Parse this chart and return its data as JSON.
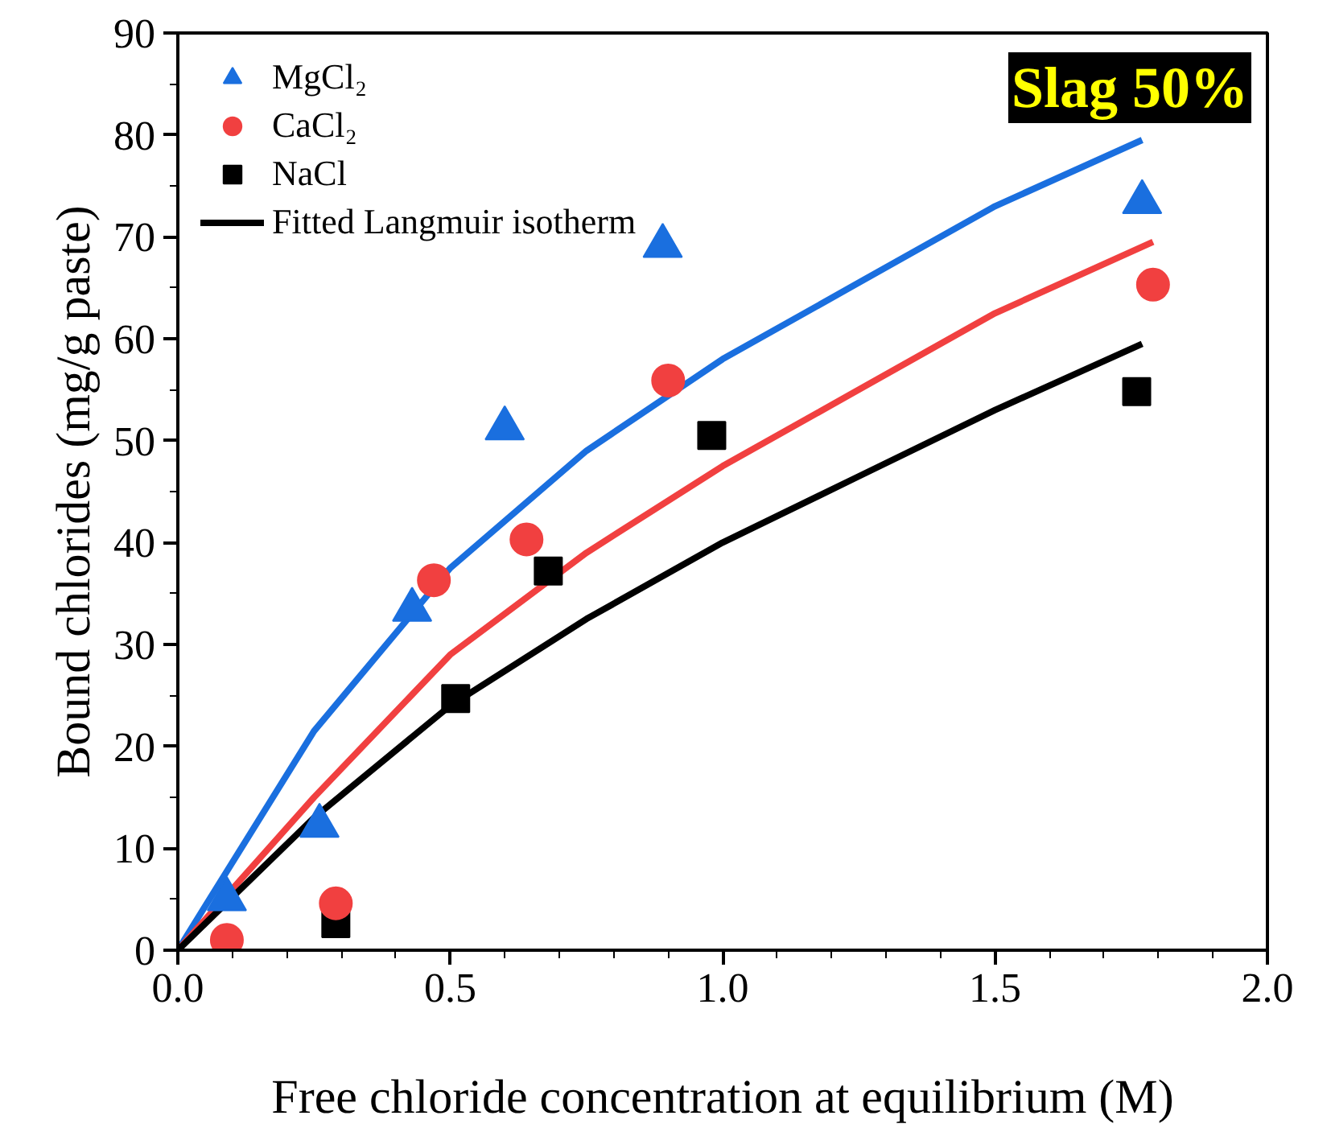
{
  "chart_data": {
    "type": "scatter",
    "xlabel": "Free chloride concentration at equilibrium (M)",
    "ylabel": "Bound chlorides (mg/g paste)",
    "annotations": [
      "Slag 50%"
    ],
    "xlim": [
      0,
      2.0
    ],
    "ylim": [
      0,
      90
    ],
    "xticks": [
      {
        "value": 0,
        "label": "0.0"
      },
      {
        "value": 0.5,
        "label": "0.5"
      },
      {
        "value": 1.0,
        "label": "1.0"
      },
      {
        "value": 1.5,
        "label": "1.5"
      },
      {
        "value": 2.0,
        "label": "2.0"
      }
    ],
    "yticks": [
      0,
      10,
      20,
      30,
      40,
      50,
      60,
      70,
      80,
      90
    ],
    "grid": false,
    "legend": "top left",
    "series": [
      {
        "type": "line",
        "color": "#1a6fdf",
        "x": [
          0,
          0.25,
          0.5,
          0.75,
          1.0,
          1.25,
          1.5,
          1.77
        ],
        "values": [
          0,
          21.5,
          37.5,
          49,
          58,
          65.5,
          73,
          79.5
        ]
      },
      {
        "type": "line",
        "color": "#f14040",
        "x": [
          0,
          0.25,
          0.5,
          0.75,
          1.0,
          1.25,
          1.5,
          1.79
        ],
        "values": [
          0,
          15,
          29,
          39,
          47.5,
          55,
          62.5,
          69.5
        ]
      },
      {
        "name": "MgCl₂",
        "marker": "triangle",
        "color": "#1a6fdf",
        "x": [
          0.09,
          0.26,
          0.43,
          0.6,
          0.89,
          1.77
        ],
        "values": [
          5,
          12.2,
          33.4,
          51.2,
          69.1,
          73.4
        ]
      },
      {
        "name": "CaCl₂",
        "marker": "circle",
        "color": "#f14040",
        "x": [
          0.09,
          0.29,
          0.47,
          0.64,
          0.9,
          1.79
        ],
        "values": [
          1,
          4.6,
          36.3,
          40.3,
          55.9,
          65.3
        ]
      },
      {
        "name": "NaCl",
        "marker": "square",
        "color": "#000000",
        "x": [
          0.29,
          0.51,
          0.68,
          0.98,
          1.76
        ],
        "values": [
          2.6,
          24.7,
          37.2,
          50.5,
          54.8
        ]
      },
      {
        "name": "Fitted Langmuir isotherm",
        "type": "line",
        "color": "#000000",
        "x": [
          0,
          0.25,
          0.5,
          0.75,
          1.0,
          1.25,
          1.5,
          1.77
        ],
        "values": [
          0,
          13,
          24,
          32.5,
          40,
          46.5,
          53,
          59.5
        ]
      }
    ]
  }
}
